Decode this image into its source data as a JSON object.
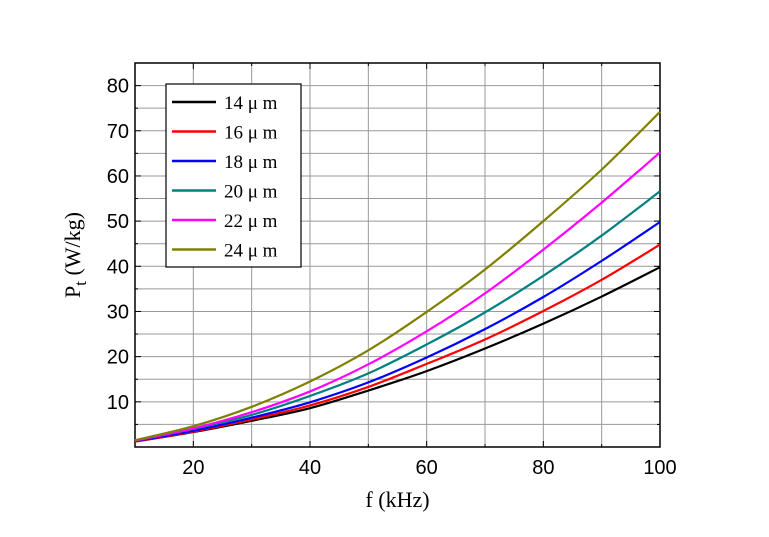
{
  "chart_data": {
    "type": "line",
    "xlabel": "f (kHz)",
    "ylabel": {
      "main": "P",
      "sub": "t",
      "rest": " (W/kg)"
    },
    "xlim": [
      10,
      100
    ],
    "ylim": [
      0,
      85
    ],
    "xticks": [
      20,
      40,
      60,
      80,
      100
    ],
    "yticks": [
      10,
      20,
      30,
      40,
      50,
      60,
      70,
      80
    ],
    "grid": true,
    "legend_position": "top-left",
    "x": [
      10,
      20,
      30,
      40,
      50,
      60,
      70,
      80,
      90,
      100
    ],
    "series": [
      {
        "name": "14 μ m",
        "color": "#000000",
        "values": [
          1.2,
          3.3,
          5.8,
          8.6,
          12.5,
          16.8,
          21.8,
          27.3,
          33.3,
          39.8
        ]
      },
      {
        "name": "16 μ m",
        "color": "#ff0000",
        "values": [
          1.2,
          3.4,
          6.1,
          9.2,
          13.3,
          18.4,
          23.8,
          30.1,
          37.0,
          44.8
        ]
      },
      {
        "name": "18 μ m",
        "color": "#0000ff",
        "values": [
          1.3,
          3.6,
          6.5,
          9.9,
          14.3,
          19.8,
          26.1,
          33.2,
          41.2,
          49.8
        ]
      },
      {
        "name": "20 μ m",
        "color": "#008080",
        "values": [
          1.4,
          4.0,
          7.1,
          11.3,
          16.3,
          22.7,
          29.8,
          37.9,
          46.8,
          56.6
        ]
      },
      {
        "name": "22 μ m",
        "color": "#ff00ff",
        "values": [
          1.4,
          4.1,
          7.7,
          12.3,
          18.3,
          25.6,
          34.0,
          43.7,
          54.1,
          65.2
        ]
      },
      {
        "name": "24 μ m",
        "color": "#808000",
        "values": [
          1.5,
          4.6,
          8.9,
          14.5,
          21.4,
          29.9,
          39.3,
          50.0,
          61.4,
          74.2
        ]
      }
    ]
  }
}
